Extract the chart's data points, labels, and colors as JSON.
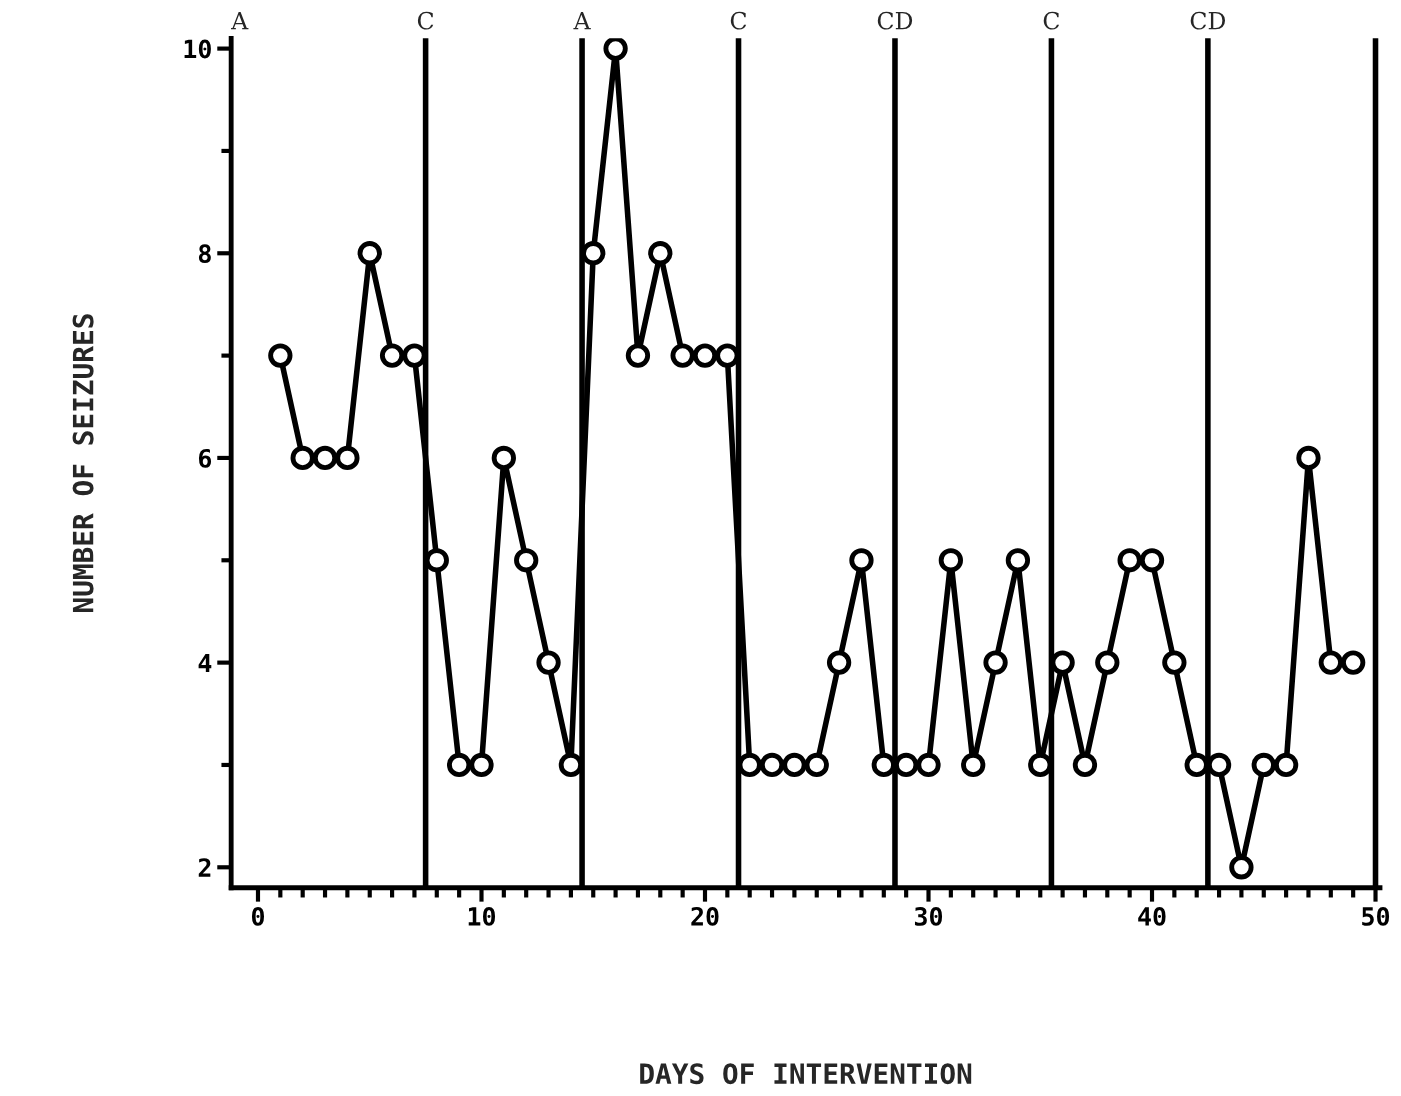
{
  "chart_data": {
    "type": "line",
    "xlabel": "DAYS OF INTERVENTION",
    "ylabel": "NUMBER OF SEIZURES",
    "x": [
      1,
      2,
      3,
      4,
      5,
      6,
      7,
      8,
      9,
      10,
      11,
      12,
      13,
      14,
      15,
      16,
      17,
      18,
      19,
      20,
      21,
      22,
      23,
      24,
      25,
      26,
      27,
      28,
      29,
      30,
      31,
      32,
      33,
      34,
      35,
      36,
      37,
      38,
      39,
      40,
      41,
      42,
      43,
      44,
      45,
      46,
      47,
      48,
      49
    ],
    "series": [
      {
        "color": "#000000",
        "values": [
          7,
          6,
          6,
          6,
          8,
          7,
          7,
          5,
          3,
          3,
          6,
          5,
          4,
          3,
          8,
          10,
          7,
          8,
          7,
          7,
          7,
          3,
          3,
          3,
          3,
          4,
          5,
          3,
          3,
          3,
          5,
          3,
          4,
          5,
          3,
          4,
          3,
          4,
          5,
          5,
          4,
          3,
          3,
          2,
          3,
          3,
          6,
          4,
          4
        ]
      }
    ],
    "annotations": [
      "A"
    ],
    "marker": "circle",
    "line_style": "solid",
    "grid": false,
    "legend": false,
    "xlim": [
      -1.2,
      50.2
    ],
    "ylim": [
      1.8,
      10.1
    ],
    "xticks": [
      0,
      {
        "value": 1,
        "label": null
      },
      {
        "value": 2,
        "label": null
      },
      {
        "value": 3,
        "label": null
      },
      {
        "value": 4,
        "label": null
      },
      {
        "value": 5,
        "label": null
      },
      {
        "value": 6,
        "label": null
      },
      {
        "value": 7,
        "label": null
      },
      {
        "value": 8,
        "label": null
      },
      {
        "value": 9,
        "label": null
      },
      10,
      {
        "value": 11,
        "label": null
      },
      {
        "value": 12,
        "label": null
      },
      {
        "value": 13,
        "label": null
      },
      {
        "value": 14,
        "label": null
      },
      {
        "value": 15,
        "label": null
      },
      {
        "value": 16,
        "label": null
      },
      {
        "value": 17,
        "label": null
      },
      {
        "value": 18,
        "label": null
      },
      {
        "value": 19,
        "label": null
      },
      20,
      {
        "value": 21,
        "label": null
      },
      {
        "value": 22,
        "label": null
      },
      {
        "value": 23,
        "label": null
      },
      {
        "value": 24,
        "label": null
      },
      {
        "value": 25,
        "label": null
      },
      {
        "value": 26,
        "label": null
      },
      {
        "value": 27,
        "label": null
      },
      {
        "value": 28,
        "label": null
      },
      {
        "value": 29,
        "label": null
      },
      30,
      {
        "value": 31,
        "label": null
      },
      {
        "value": 32,
        "label": null
      },
      {
        "value": 33,
        "label": null
      },
      {
        "value": 34,
        "label": null
      },
      {
        "value": 35,
        "label": null
      },
      {
        "value": 36,
        "label": null
      },
      {
        "value": 37,
        "label": null
      },
      {
        "value": 38,
        "label": null
      },
      {
        "value": 39,
        "label": null
      },
      40,
      {
        "value": 41,
        "label": null
      },
      {
        "value": 42,
        "label": null
      },
      {
        "value": 43,
        "label": null
      },
      {
        "value": 44,
        "label": null
      },
      {
        "value": 45,
        "label": null
      },
      {
        "value": 46,
        "label": null
      },
      {
        "value": 47,
        "label": null
      },
      {
        "value": 48,
        "label": null
      },
      {
        "value": 49,
        "label": null
      },
      50
    ],
    "yticks": [
      2,
      {
        "value": 3,
        "label": null
      },
      4,
      {
        "value": 5,
        "label": null
      },
      6,
      {
        "value": 7,
        "label": null
      },
      8,
      {
        "value": 9,
        "label": null
      },
      10
    ],
    "ref_lines": [
      {
        "axis": "x",
        "value": 7.5,
        "label": "C"
      },
      {
        "axis": "x",
        "value": 14.5,
        "label": "A"
      },
      {
        "axis": "x",
        "value": 21.5,
        "label": "C"
      },
      {
        "axis": "x",
        "value": 28.5,
        "label": "CD"
      },
      {
        "axis": "x",
        "value": 35.5,
        "label": "C"
      },
      {
        "axis": "x",
        "value": 42.5,
        "label": "CD"
      },
      {
        "axis": "x",
        "value": 50,
        "label": null
      }
    ]
  }
}
